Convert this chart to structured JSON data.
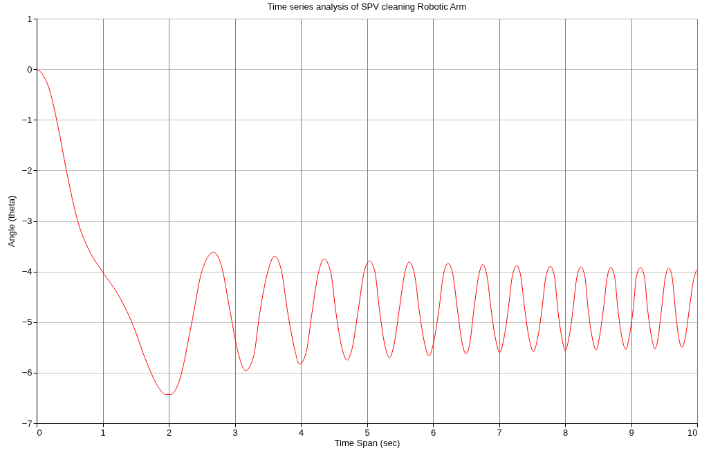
{
  "chart_data": {
    "type": "line",
    "title": "Time series analysis of SPV cleaning Robotic Arm",
    "xlabel": "Time Span (sec)",
    "ylabel": "Angle (theta)",
    "xlim": [
      0,
      10
    ],
    "xticks": [
      0,
      1,
      2,
      3,
      4,
      5,
      6,
      7,
      8,
      9,
      10
    ],
    "ylim": [
      -7,
      1
    ],
    "yticks": [
      -7,
      -6,
      -5,
      -4,
      -3,
      -2,
      -1,
      0,
      1
    ],
    "grid": true,
    "marker": "none",
    "line_style": "solid",
    "series": [
      {
        "color": "#ff0000",
        "x": [
          0,
          0.1,
          0.2,
          0.32,
          0.45,
          0.63,
          0.79,
          1.0,
          1.23,
          1.45,
          1.67,
          1.85,
          1.95,
          2.03,
          2.15,
          2.35,
          2.5,
          2.68,
          2.8,
          2.93,
          3.05,
          3.16,
          3.28,
          3.38,
          3.5,
          3.6,
          3.7,
          3.8,
          3.9,
          3.98,
          4.08,
          4.17,
          4.27,
          4.35,
          4.45,
          4.53,
          4.62,
          4.7,
          4.78,
          4.87,
          4.96,
          5.04,
          5.12,
          5.19,
          5.27,
          5.34,
          5.41,
          5.49,
          5.57,
          5.64,
          5.72,
          5.79,
          5.87,
          5.94,
          6.01,
          6.09,
          6.16,
          6.23,
          6.3,
          6.37,
          6.44,
          6.5,
          6.56,
          6.62,
          6.69,
          6.75,
          6.82,
          6.88,
          6.95,
          7.01,
          7.07,
          7.14,
          7.2,
          7.27,
          7.33,
          7.39,
          7.46,
          7.52,
          7.58,
          7.65,
          7.71,
          7.78,
          7.84,
          7.89,
          7.95,
          8.0,
          8.06,
          8.12,
          8.18,
          8.24,
          8.3,
          8.35,
          8.41,
          8.47,
          8.52,
          8.58,
          8.64,
          8.69,
          8.75,
          8.8,
          8.86,
          8.92,
          8.97,
          9.03,
          9.08,
          9.14,
          9.2,
          9.25,
          9.31,
          9.36,
          9.41,
          9.46,
          9.52,
          9.57,
          9.62,
          9.67,
          9.72,
          9.77,
          9.82,
          9.88,
          9.94,
          9.99
        ],
        "values": [
          0,
          -0.12,
          -0.43,
          -1.11,
          -2.0,
          -3.04,
          -3.57,
          -4.01,
          -4.45,
          -5.03,
          -5.81,
          -6.3,
          -6.43,
          -6.43,
          -6.2,
          -5.0,
          -4.0,
          -3.62,
          -3.9,
          -4.8,
          -5.6,
          -5.96,
          -5.7,
          -4.8,
          -4.0,
          -3.7,
          -3.95,
          -4.8,
          -5.5,
          -5.83,
          -5.6,
          -4.8,
          -4.0,
          -3.75,
          -4.0,
          -4.8,
          -5.5,
          -5.75,
          -5.5,
          -4.75,
          -4.0,
          -3.79,
          -4.0,
          -4.75,
          -5.45,
          -5.7,
          -5.45,
          -4.75,
          -4.05,
          -3.81,
          -4.05,
          -4.75,
          -5.4,
          -5.67,
          -5.4,
          -4.75,
          -4.05,
          -3.84,
          -4.05,
          -4.75,
          -5.4,
          -5.63,
          -5.4,
          -4.75,
          -4.1,
          -3.86,
          -4.1,
          -4.75,
          -5.35,
          -5.6,
          -5.35,
          -4.75,
          -4.1,
          -3.88,
          -4.1,
          -4.75,
          -5.35,
          -5.58,
          -5.35,
          -4.75,
          -4.1,
          -3.9,
          -4.1,
          -4.75,
          -5.3,
          -5.56,
          -5.3,
          -4.75,
          -4.1,
          -3.91,
          -4.1,
          -4.75,
          -5.3,
          -5.55,
          -5.3,
          -4.75,
          -4.1,
          -3.92,
          -4.1,
          -4.75,
          -5.3,
          -5.54,
          -5.3,
          -4.75,
          -4.1,
          -3.92,
          -4.1,
          -4.75,
          -5.3,
          -5.53,
          -5.3,
          -4.75,
          -4.1,
          -3.93,
          -4.1,
          -4.75,
          -5.3,
          -5.5,
          -5.3,
          -4.75,
          -4.2,
          -3.97
        ]
      }
    ]
  }
}
